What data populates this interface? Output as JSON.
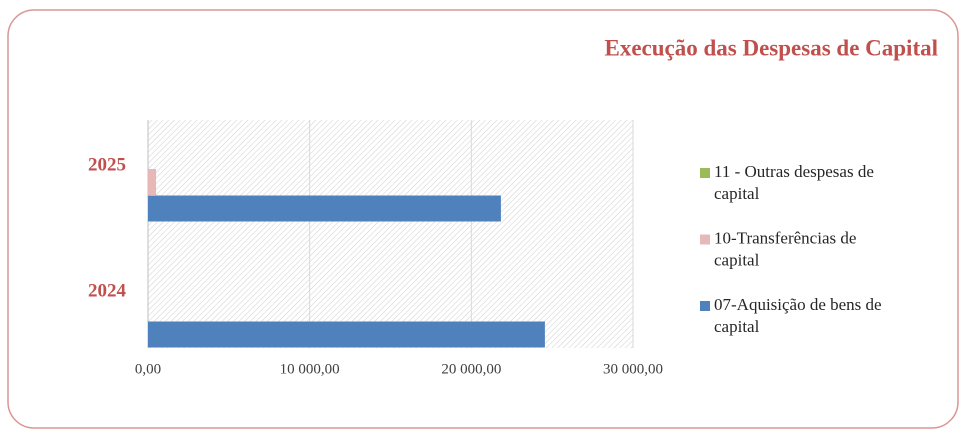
{
  "chart_data": {
    "type": "bar",
    "orientation": "horizontal",
    "title": "Execução das Despesas de Capital",
    "categories": [
      "2024",
      "2025"
    ],
    "series": [
      {
        "name": "07-Aquisição de bens de capital",
        "color": "#4f81bd",
        "values": [
          24550,
          21830
        ]
      },
      {
        "name": "10-Transferências de capital",
        "color": "#e6b9b8",
        "values": [
          0,
          500
        ]
      },
      {
        "name": "11 - Outras despesas de capital",
        "color": "#9bbb59",
        "values": [
          0,
          0
        ]
      }
    ],
    "xlim": [
      0,
      30000
    ],
    "xticks": [
      {
        "value": 0,
        "label": "0,00"
      },
      {
        "value": 10000,
        "label": "10 000,00"
      },
      {
        "value": 20000,
        "label": "20 000,00"
      },
      {
        "value": 30000,
        "label": "30 000,00"
      }
    ],
    "grid": true,
    "legend": "right"
  }
}
